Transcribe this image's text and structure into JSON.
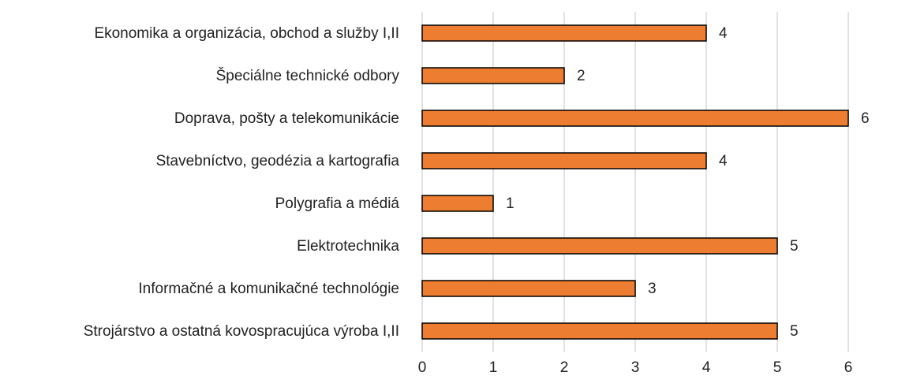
{
  "chart_data": {
    "type": "bar",
    "orientation": "horizontal",
    "categories": [
      "Ekonomika a organizácia, obchod a služby I,II",
      "Špeciálne technické odbory",
      "Doprava, pošty a telekomunikácie",
      "Stavebníctvo, geodézia a kartografia",
      "Polygrafia a médiá",
      "Elektrotechnika",
      "Informačné a komunikačné technológie",
      "Strojárstvo a ostatná kovospracujúca výroba I,II"
    ],
    "values": [
      4,
      2,
      6,
      4,
      1,
      5,
      3,
      5
    ],
    "color": "#ed7d31",
    "xlim": [
      0,
      6
    ],
    "xticks": [
      0,
      1,
      2,
      3,
      4,
      5,
      6
    ],
    "grid": true
  }
}
